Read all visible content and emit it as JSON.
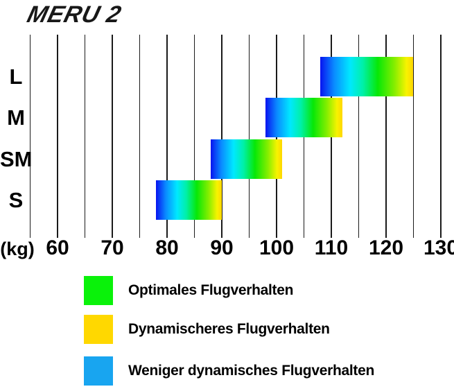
{
  "title": "MERU 2",
  "chart_data": {
    "type": "bar",
    "subtype": "horizontal-range-bars",
    "title": "MERU 2",
    "unit_label": "(kg)",
    "axis": {
      "min": 55,
      "max": 130,
      "minor_step": 5,
      "major_step": 10,
      "major_tick_labels": [
        60,
        70,
        80,
        90,
        100,
        110,
        120,
        130
      ]
    },
    "rows": [
      {
        "size": "L",
        "min_kg": 108,
        "max_kg": 125
      },
      {
        "size": "M",
        "min_kg": 98,
        "max_kg": 112
      },
      {
        "size": "SM",
        "min_kg": 88,
        "max_kg": 101
      },
      {
        "size": "S",
        "min_kg": 78,
        "max_kg": 90
      }
    ],
    "bar_gradient_stops": [
      {
        "color": "#0813f0",
        "pos": 0
      },
      {
        "color": "#0a8bff",
        "pos": 15
      },
      {
        "color": "#00e8ff",
        "pos": 32
      },
      {
        "color": "#00f0a8",
        "pos": 46
      },
      {
        "color": "#07e807",
        "pos": 62
      },
      {
        "color": "#86ee00",
        "pos": 80
      },
      {
        "color": "#f8f300",
        "pos": 93
      },
      {
        "color": "#ffd600",
        "pos": 100
      }
    ]
  },
  "legend": {
    "items": [
      {
        "color": "#0af20a",
        "label": "Optimales Flugverhalten"
      },
      {
        "color": "#ffd800",
        "label": "Dynamischeres Flugverhalten"
      },
      {
        "color": "#18a5f0",
        "label": "Weniger dynamisches Flugverhalten"
      }
    ]
  }
}
